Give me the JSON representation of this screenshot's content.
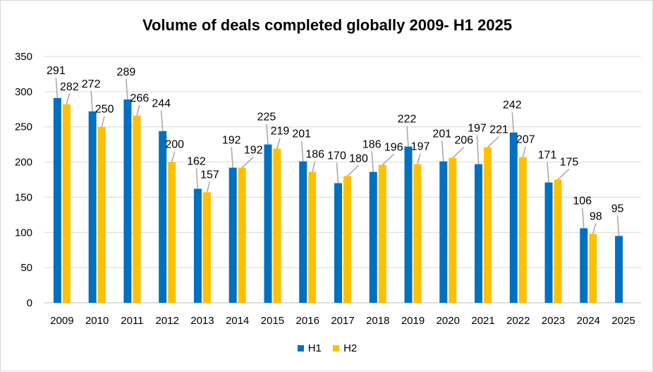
{
  "chart_data": {
    "type": "bar",
    "title": "Volume of deals  completed globally 2009- H1 2025",
    "categories": [
      "2009",
      "2010",
      "2011",
      "2012",
      "2013",
      "2014",
      "2015",
      "2016",
      "2017",
      "2018",
      "2019",
      "2020",
      "2021",
      "2022",
      "2023",
      "2024",
      "2025"
    ],
    "series": [
      {
        "name": "H1",
        "color": "#0070C0",
        "values": [
          291,
          272,
          289,
          244,
          162,
          192,
          225,
          201,
          170,
          186,
          222,
          201,
          197,
          242,
          171,
          106,
          95
        ]
      },
      {
        "name": "H2",
        "color": "#FFC000",
        "values": [
          282,
          250,
          266,
          200,
          157,
          192,
          219,
          186,
          180,
          196,
          197,
          206,
          221,
          207,
          175,
          98,
          null
        ]
      }
    ],
    "ylim": [
      0,
      350
    ],
    "yticks": [
      0,
      50,
      100,
      150,
      200,
      250,
      300,
      350
    ],
    "grid": true,
    "legend": "bottom",
    "data_labels": true
  }
}
